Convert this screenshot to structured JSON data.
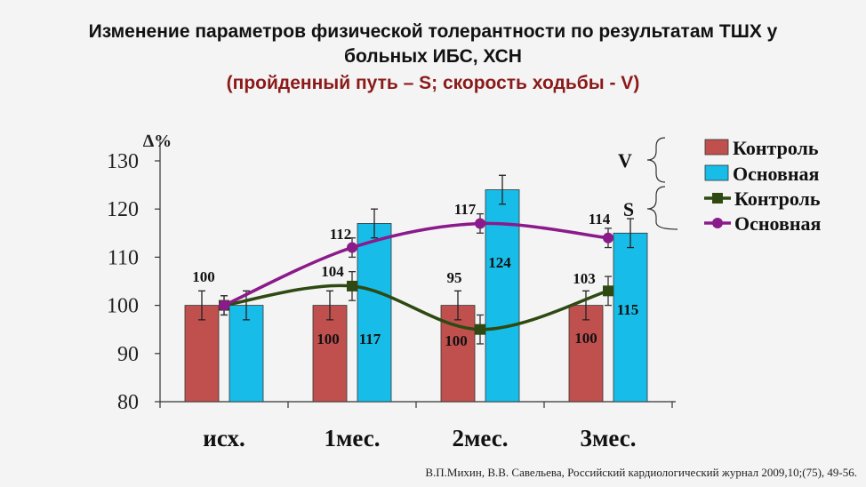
{
  "title_line1": "Изменение параметров физической толерантности по результатам ТШХ у",
  "title_line2": "больных ИБС, ХСН",
  "subtitle": "(пройденный путь – S; скорость ходьбы - V)",
  "citation": "В.П.Михин, В.В. Савельева,  Российский кардиологический журнал 2009,10;(75), 49-56.",
  "chart_data": {
    "type": "bar",
    "ylabel": "∆%",
    "ylim": [
      80,
      130
    ],
    "yticks": [
      "130",
      "120",
      "110",
      "100",
      "90",
      "80"
    ],
    "categories": [
      "исх.",
      "1мес.",
      "2мес.",
      "3мес."
    ],
    "legend": {
      "groups": [
        {
          "label": "V",
          "entries": [
            "Контроль",
            "Основная"
          ]
        },
        {
          "label": "S",
          "entries": [
            "Контроль",
            "Основная"
          ]
        }
      ]
    },
    "series": [
      {
        "name": "Контроль",
        "group": "V",
        "kind": "bar",
        "color": "#c0504d",
        "values": [
          100,
          100,
          100,
          100
        ],
        "errors": [
          3,
          3,
          3,
          3
        ],
        "labels": [
          "100",
          "100",
          "100",
          "100"
        ]
      },
      {
        "name": "Основная",
        "group": "V",
        "kind": "bar",
        "color": "#17bde8",
        "values": [
          100,
          117,
          124,
          115
        ],
        "errors": [
          3,
          3,
          3,
          3
        ],
        "labels": [
          "",
          "117",
          "124",
          "115"
        ]
      },
      {
        "name": "Контроль",
        "group": "S",
        "kind": "line",
        "color": "#2e4a12",
        "values": [
          100,
          104,
          95,
          103
        ],
        "errors": [
          2,
          3,
          3,
          3
        ],
        "labels": [
          "",
          "104",
          "95",
          "103"
        ]
      },
      {
        "name": "Основная",
        "group": "S",
        "kind": "line",
        "color": "#8b1a8b",
        "values": [
          100,
          112,
          117,
          114
        ],
        "errors": [
          2,
          2,
          2,
          2
        ],
        "labels": [
          "",
          "112",
          "117",
          "114"
        ]
      }
    ]
  }
}
